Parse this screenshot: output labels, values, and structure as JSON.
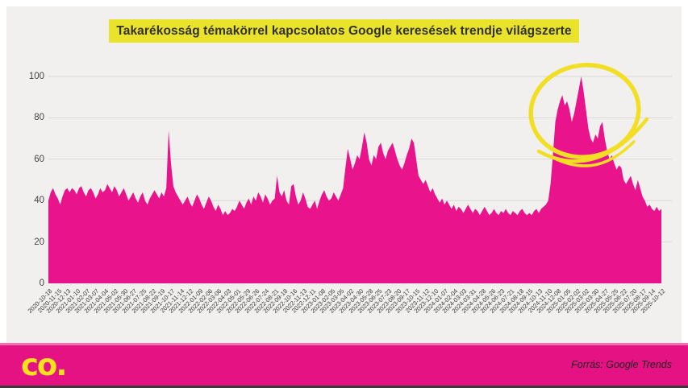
{
  "title": "Takarékosság témakörrel kapcsolatos Google keresések trendje világszerte",
  "footer": {
    "logo_text": "co.",
    "source_label": "Forrás: Google Trends"
  },
  "colors": {
    "background": "#f1f0ee",
    "area_pink": "#e9138b",
    "footer_pink": "#e51284",
    "footer_pink_light": "#f173ae",
    "title_highlight_yellow": "#eae32c",
    "annotation_yellow": "#f2df25",
    "grid_gray": "#d9d9d9",
    "text_dark": "#3a3a3a"
  },
  "chart_data": {
    "type": "area",
    "title": "Takarékosság témakörrel kapcsolatos Google keresések trendje világszerte",
    "frequency": "weekly",
    "x_start": "2020-10-18",
    "x_end": "2025-10-12",
    "ylim": [
      0,
      100
    ],
    "y_ticks": [
      0,
      20,
      40,
      60,
      80,
      100
    ],
    "grid": "horizontal",
    "legend": "none",
    "x_tick_every_n_weeks": 4,
    "x_tick_labels": [
      "2020-10-18",
      "2020-11-15",
      "2020-12-13",
      "2021-01-10",
      "2021-02-07",
      "2021-03-07",
      "2021-04-04",
      "2021-05-02",
      "2021-05-30",
      "2021-06-27",
      "2021-07-25",
      "2021-08-22",
      "2021-09-19",
      "2021-10-17",
      "2021-11-14",
      "2021-12-12",
      "2022-01-09",
      "2022-02-06",
      "2022-03-06",
      "2022-04-03",
      "2022-05-01",
      "2022-05-29",
      "2022-06-26",
      "2022-07-24",
      "2022-08-21",
      "2022-09-18",
      "2022-10-16",
      "2022-11-13",
      "2022-12-11",
      "2023-01-08",
      "2023-02-05",
      "2023-03-05",
      "2023-04-02",
      "2023-04-30",
      "2023-05-28",
      "2023-06-25",
      "2023-07-23",
      "2023-08-20",
      "2023-09-17",
      "2023-10-15",
      "2023-11-12",
      "2023-12-10",
      "2024-01-07",
      "2024-02-04",
      "2024-03-03",
      "2024-03-31",
      "2024-04-28",
      "2024-05-26",
      "2024-06-23",
      "2024-07-21",
      "2024-08-18",
      "2024-09-15",
      "2024-10-13",
      "2024-11-10",
      "2024-12-08",
      "2025-01-05",
      "2025-02-02",
      "2025-03-02",
      "2025-03-30",
      "2025-04-27",
      "2025-05-25",
      "2025-06-22",
      "2025-07-20",
      "2025-08-17",
      "2025-09-14",
      "2025-10-12"
    ],
    "values": [
      40,
      44,
      46,
      43,
      41,
      38,
      42,
      45,
      46,
      44,
      46,
      45,
      43,
      46,
      47,
      44,
      42,
      45,
      46,
      44,
      41,
      43,
      46,
      44,
      45,
      48,
      46,
      44,
      47,
      45,
      42,
      44,
      46,
      43,
      40,
      42,
      44,
      41,
      39,
      42,
      44,
      40,
      38,
      41,
      43,
      45,
      43,
      41,
      44,
      42,
      46,
      74,
      58,
      47,
      44,
      42,
      40,
      38,
      40,
      42,
      39,
      37,
      40,
      43,
      41,
      38,
      36,
      39,
      42,
      40,
      37,
      35,
      38,
      36,
      33,
      35,
      33,
      34,
      36,
      35,
      37,
      40,
      38,
      36,
      39,
      41,
      38,
      42,
      40,
      44,
      42,
      39,
      43,
      41,
      38,
      40,
      41,
      52,
      44,
      42,
      45,
      40,
      38,
      47,
      48,
      42,
      38,
      40,
      44,
      41,
      37,
      36,
      38,
      40,
      36,
      40,
      43,
      45,
      42,
      40,
      41,
      44,
      42,
      40,
      43,
      46,
      56,
      65,
      60,
      55,
      58,
      62,
      60,
      66,
      73,
      68,
      60,
      57,
      62,
      60,
      66,
      68,
      63,
      60,
      64,
      66,
      68,
      64,
      60,
      57,
      55,
      58,
      62,
      65,
      70,
      68,
      60,
      52,
      50,
      48,
      50,
      47,
      44,
      46,
      43,
      41,
      39,
      41,
      38,
      40,
      38,
      36,
      38,
      35,
      37,
      36,
      34,
      36,
      38,
      36,
      34,
      36,
      35,
      33,
      35,
      37,
      35,
      33,
      34,
      36,
      34,
      33,
      35,
      34,
      36,
      34,
      33,
      35,
      34,
      33,
      35,
      36,
      34,
      33,
      34,
      33,
      35,
      36,
      34,
      36,
      37,
      38,
      40,
      48,
      62,
      78,
      84,
      88,
      91,
      86,
      88,
      84,
      78,
      82,
      88,
      94,
      100,
      93,
      84,
      75,
      70,
      68,
      72,
      70,
      76,
      78,
      70,
      64,
      60,
      62,
      58,
      55,
      57,
      56,
      50,
      48,
      50,
      52,
      48,
      45,
      50,
      46,
      42,
      40,
      37,
      38,
      36,
      35,
      37,
      35,
      36
    ],
    "annotation": "hand-drawn yellow double circle highlighting the late-2024 / early-2025 search peak"
  }
}
